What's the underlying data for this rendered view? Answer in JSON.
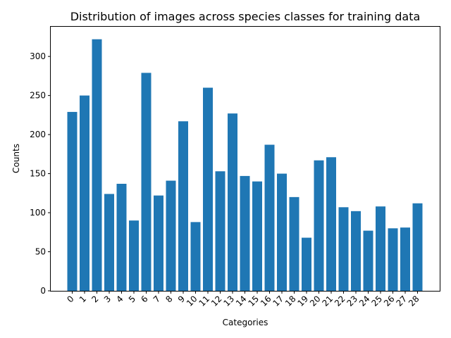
{
  "chart_data": {
    "type": "bar",
    "title": "Distribution of images across species classes for training data",
    "xlabel": "Categories",
    "ylabel": "Counts",
    "categories": [
      "0",
      "1",
      "2",
      "3",
      "4",
      "5",
      "6",
      "7",
      "8",
      "9",
      "10",
      "11",
      "12",
      "13",
      "14",
      "15",
      "16",
      "17",
      "18",
      "19",
      "20",
      "21",
      "22",
      "23",
      "24",
      "25",
      "26",
      "27",
      "28"
    ],
    "values": [
      229,
      250,
      322,
      124,
      137,
      90,
      279,
      122,
      141,
      217,
      88,
      260,
      153,
      227,
      147,
      140,
      187,
      150,
      120,
      68,
      167,
      171,
      107,
      102,
      77,
      108,
      80,
      81,
      112
    ],
    "ylim": [
      0,
      338
    ],
    "yticks": [
      0,
      50,
      100,
      150,
      200,
      250,
      300
    ],
    "bar_color": "#1f77b4",
    "grid": false,
    "legend": "none"
  }
}
